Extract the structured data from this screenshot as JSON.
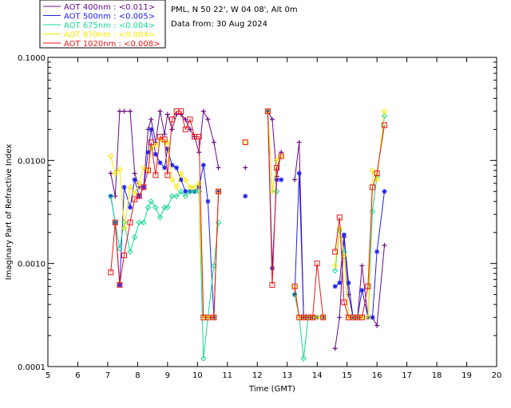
{
  "header": {
    "location": "PML, N 50 22', W 04 08', Alt 0m",
    "date_line": "Data from: 30 Aug 2024"
  },
  "chart_data": {
    "type": "line",
    "title": "",
    "xlabel": "Time (GMT)",
    "ylabel": "Imaginary Part of Refractive Index",
    "xlim": [
      5,
      20
    ],
    "ylim": [
      0.0001,
      0.1
    ],
    "yscale": "log",
    "x_ticks": [
      "5",
      "6",
      "7",
      "8",
      "9",
      "10",
      "11",
      "12",
      "13",
      "14",
      "15",
      "16",
      "17",
      "18",
      "19",
      "20"
    ],
    "y_ticks": [
      {
        "value": 0.0001,
        "label": "0.0001"
      },
      {
        "value": 0.001,
        "label": "0.0010"
      },
      {
        "value": 0.01,
        "label": "0.0100"
      },
      {
        "value": 0.1,
        "label": "0.1000"
      }
    ],
    "legend_position": "top-left",
    "series": [
      {
        "name": "AOT  400nm : <0.011>",
        "color": "#6a0a8a",
        "marker": "plus",
        "points": [
          [
            7.1,
            0.0075
          ],
          [
            7.25,
            0.0045
          ],
          [
            7.4,
            0.03
          ],
          [
            7.55,
            0.03
          ],
          [
            7.75,
            0.03
          ],
          [
            7.9,
            0.0075
          ],
          [
            8.05,
            0.0055
          ],
          [
            8.2,
            0.0055
          ],
          [
            8.35,
            0.02
          ],
          [
            8.45,
            0.025
          ],
          [
            8.6,
            0.015
          ],
          [
            8.75,
            0.03
          ],
          [
            8.9,
            0.018
          ],
          [
            9.0,
            0.028
          ],
          [
            9.15,
            0.02
          ],
          [
            9.3,
            0.028
          ],
          [
            9.45,
            0.028
          ],
          [
            9.6,
            0.025
          ],
          [
            9.75,
            0.02
          ],
          [
            9.9,
            0.017
          ],
          [
            10.05,
            0.012
          ],
          [
            10.2,
            0.03
          ],
          [
            10.35,
            0.025
          ],
          [
            10.55,
            0.015
          ],
          [
            10.7,
            0.0085
          ],
          null,
          [
            11.6,
            0.0085
          ],
          null,
          [
            12.35,
            0.03
          ],
          [
            12.5,
            0.025
          ],
          [
            12.65,
            0.007
          ],
          [
            12.8,
            0.012
          ],
          null,
          [
            13.25,
            0.0065
          ],
          [
            13.4,
            0.015
          ],
          [
            13.55,
            0.0003
          ],
          [
            13.7,
            0.0003
          ],
          [
            13.85,
            0.0003
          ],
          [
            14.0,
            0.0003
          ],
          [
            14.2,
            0.0003
          ],
          null,
          [
            14.6,
            0.00015
          ],
          [
            14.75,
            0.0003
          ],
          [
            14.9,
            0.0018
          ],
          [
            15.05,
            0.0005
          ],
          [
            15.2,
            0.0003
          ],
          [
            15.35,
            0.0003
          ],
          [
            15.5,
            0.00095
          ],
          [
            15.7,
            0.0003
          ],
          [
            15.85,
            0.0003
          ],
          [
            16.0,
            0.00025
          ],
          [
            16.25,
            0.0015
          ]
        ]
      },
      {
        "name": "AOT  500nm : <0.005>",
        "color": "#2020e8",
        "marker": "star",
        "points": [
          [
            7.1,
            0.0045
          ],
          [
            7.25,
            0.0025
          ],
          [
            7.4,
            0.00062
          ],
          [
            7.55,
            0.0055
          ],
          [
            7.75,
            0.0035
          ],
          [
            7.9,
            0.0065
          ],
          [
            8.05,
            0.0045
          ],
          [
            8.2,
            0.0055
          ],
          [
            8.35,
            0.012
          ],
          [
            8.45,
            0.02
          ],
          [
            8.6,
            0.0115
          ],
          [
            8.75,
            0.0095
          ],
          [
            8.9,
            0.0085
          ],
          [
            9.0,
            0.013
          ],
          [
            9.15,
            0.009
          ],
          [
            9.3,
            0.0085
          ],
          [
            9.45,
            0.0065
          ],
          [
            9.6,
            0.005
          ],
          [
            9.75,
            0.005
          ],
          [
            9.9,
            0.005
          ],
          [
            10.05,
            0.0055
          ],
          [
            10.2,
            0.009
          ],
          [
            10.35,
            0.004
          ],
          [
            10.55,
            0.0003
          ],
          [
            10.7,
            0.005
          ],
          null,
          [
            11.6,
            0.0045
          ],
          null,
          [
            12.35,
            0.03
          ],
          [
            12.5,
            0.0009
          ],
          [
            12.65,
            0.0065
          ],
          [
            12.8,
            0.0065
          ],
          null,
          [
            13.25,
            0.0005
          ],
          [
            13.4,
            0.0075
          ],
          [
            13.55,
            0.0003
          ],
          [
            13.7,
            0.0003
          ],
          [
            13.85,
            0.0003
          ],
          [
            14.0,
            0.0003
          ],
          [
            14.2,
            0.0003
          ],
          null,
          [
            14.6,
            0.0006
          ],
          [
            14.75,
            0.00065
          ],
          [
            14.9,
            0.0019
          ],
          [
            15.05,
            0.00065
          ],
          [
            15.2,
            0.0003
          ],
          [
            15.35,
            0.0003
          ],
          [
            15.5,
            0.00055
          ],
          [
            15.7,
            0.0003
          ],
          [
            15.85,
            0.0003
          ],
          [
            16.0,
            0.0013
          ],
          [
            16.25,
            0.005
          ]
        ]
      },
      {
        "name": "AOT  675nm : <0.004>",
        "color": "#18d890",
        "marker": "diamond",
        "points": [
          [
            7.1,
            0.0045
          ],
          [
            7.25,
            0.0025
          ],
          [
            7.4,
            0.0014
          ],
          [
            7.55,
            0.0025
          ],
          [
            7.75,
            0.0013
          ],
          [
            7.9,
            0.0018
          ],
          [
            8.05,
            0.0025
          ],
          [
            8.2,
            0.0025
          ],
          [
            8.35,
            0.0035
          ],
          [
            8.45,
            0.004
          ],
          [
            8.6,
            0.0035
          ],
          [
            8.75,
            0.0028
          ],
          [
            8.9,
            0.0035
          ],
          [
            9.0,
            0.0035
          ],
          [
            9.15,
            0.0045
          ],
          [
            9.3,
            0.0045
          ],
          [
            9.45,
            0.005
          ],
          [
            9.6,
            0.0045
          ],
          [
            9.75,
            0.005
          ],
          [
            9.9,
            0.005
          ],
          [
            10.05,
            0.005
          ],
          [
            10.2,
            0.00012
          ],
          [
            10.35,
            0.0003
          ],
          [
            10.55,
            0.00095
          ],
          [
            10.7,
            0.0025
          ],
          null,
          null,
          [
            12.35,
            0.03
          ],
          [
            12.5,
            0.005
          ],
          [
            12.65,
            0.005
          ],
          null,
          null,
          [
            13.25,
            0.0005
          ],
          [
            13.4,
            0.0003
          ],
          [
            13.55,
            0.00012
          ],
          [
            13.7,
            0.0003
          ],
          [
            13.85,
            0.0003
          ],
          [
            14.0,
            0.0003
          ],
          [
            14.2,
            0.0003
          ],
          null,
          [
            14.6,
            0.00085
          ],
          [
            14.75,
            0.0021
          ],
          [
            14.9,
            0.0013
          ],
          [
            15.05,
            0.0003
          ],
          [
            15.2,
            0.0003
          ],
          [
            15.35,
            0.0003
          ],
          [
            15.5,
            0.0003
          ],
          [
            15.7,
            0.0003
          ],
          [
            15.85,
            0.0032
          ],
          [
            16.0,
            0.007
          ],
          [
            16.25,
            0.027
          ]
        ]
      },
      {
        "name": "AOT  870nm : <0.004>",
        "color": "#f8e800",
        "marker": "diamond",
        "points": [
          [
            7.1,
            0.011
          ],
          [
            7.25,
            0.0075
          ],
          [
            7.4,
            0.0082
          ],
          [
            7.55,
            0.0022
          ],
          [
            7.75,
            0.0055
          ],
          [
            7.9,
            0.0048
          ],
          [
            8.05,
            0.006
          ],
          [
            8.2,
            0.0085
          ],
          [
            8.35,
            0.008
          ],
          [
            8.45,
            0.013
          ],
          [
            8.6,
            0.014
          ],
          [
            8.75,
            0.016
          ],
          [
            8.9,
            0.015
          ],
          [
            9.0,
            0.015
          ],
          [
            9.15,
            0.0065
          ],
          [
            9.3,
            0.0055
          ],
          [
            9.45,
            0.0075
          ],
          [
            9.6,
            0.0065
          ],
          [
            9.75,
            0.0055
          ],
          [
            9.9,
            0.0055
          ],
          [
            10.05,
            0.006
          ],
          [
            10.2,
            0.0003
          ],
          [
            10.35,
            0.0003
          ],
          [
            10.55,
            0.0003
          ],
          [
            10.7,
            0.005
          ],
          null,
          [
            11.6,
            0.015
          ],
          null,
          [
            12.35,
            0.03
          ],
          [
            12.5,
            0.005
          ],
          [
            12.65,
            0.01
          ],
          [
            12.8,
            0.011
          ],
          null,
          [
            13.25,
            0.0006
          ],
          [
            13.4,
            0.0003
          ],
          [
            13.55,
            0.0003
          ],
          [
            13.7,
            0.0003
          ],
          [
            13.85,
            0.0003
          ],
          [
            14.0,
            0.0003
          ],
          [
            14.2,
            0.0003
          ],
          null,
          [
            14.6,
            0.00095
          ],
          [
            14.75,
            0.0022
          ],
          [
            14.9,
            0.0012
          ],
          [
            15.05,
            0.0003
          ],
          [
            15.2,
            0.0003
          ],
          [
            15.35,
            0.0003
          ],
          [
            15.5,
            0.0003
          ],
          [
            15.7,
            0.0003
          ],
          [
            15.85,
            0.008
          ],
          [
            16.0,
            0.0065
          ],
          [
            16.25,
            0.03
          ]
        ]
      },
      {
        "name": "AOT 1020nm : <0.008>",
        "color": "#e81818",
        "marker": "square",
        "points": [
          [
            7.1,
            0.00082
          ],
          [
            7.25,
            0.0025
          ],
          [
            7.4,
            0.00062
          ],
          [
            7.55,
            0.0012
          ],
          [
            7.75,
            0.0025
          ],
          [
            7.9,
            0.0042
          ],
          [
            8.05,
            0.0045
          ],
          [
            8.2,
            0.0055
          ],
          [
            8.35,
            0.008
          ],
          [
            8.45,
            0.015
          ],
          [
            8.6,
            0.0072
          ],
          [
            8.75,
            0.017
          ],
          [
            8.9,
            0.016
          ],
          [
            9.0,
            0.0072
          ],
          [
            9.15,
            0.025
          ],
          [
            9.3,
            0.03
          ],
          [
            9.45,
            0.03
          ],
          [
            9.6,
            0.02
          ],
          [
            9.75,
            0.025
          ],
          [
            9.9,
            0.017
          ],
          [
            10.05,
            0.017
          ],
          [
            10.2,
            0.0003
          ],
          [
            10.35,
            0.0003
          ],
          [
            10.55,
            0.0003
          ],
          [
            10.7,
            0.005
          ],
          null,
          [
            11.6,
            0.015
          ],
          null,
          [
            12.35,
            0.03
          ],
          [
            12.5,
            0.00062
          ],
          [
            12.65,
            0.0085
          ],
          [
            12.8,
            0.011
          ],
          null,
          [
            13.25,
            0.0006
          ],
          [
            13.4,
            0.0003
          ],
          [
            13.55,
            0.0003
          ],
          [
            13.7,
            0.0003
          ],
          [
            13.85,
            0.0003
          ],
          [
            14.0,
            0.001
          ],
          [
            14.2,
            0.0003
          ],
          null,
          [
            14.6,
            0.0013
          ],
          [
            14.75,
            0.0028
          ],
          [
            14.9,
            0.00042
          ],
          [
            15.05,
            0.0003
          ],
          [
            15.2,
            0.0003
          ],
          [
            15.35,
            0.0003
          ],
          [
            15.5,
            0.0003
          ],
          [
            15.7,
            0.0006
          ],
          [
            15.85,
            0.0055
          ],
          [
            16.0,
            0.0075
          ],
          [
            16.25,
            0.022
          ]
        ]
      }
    ]
  }
}
